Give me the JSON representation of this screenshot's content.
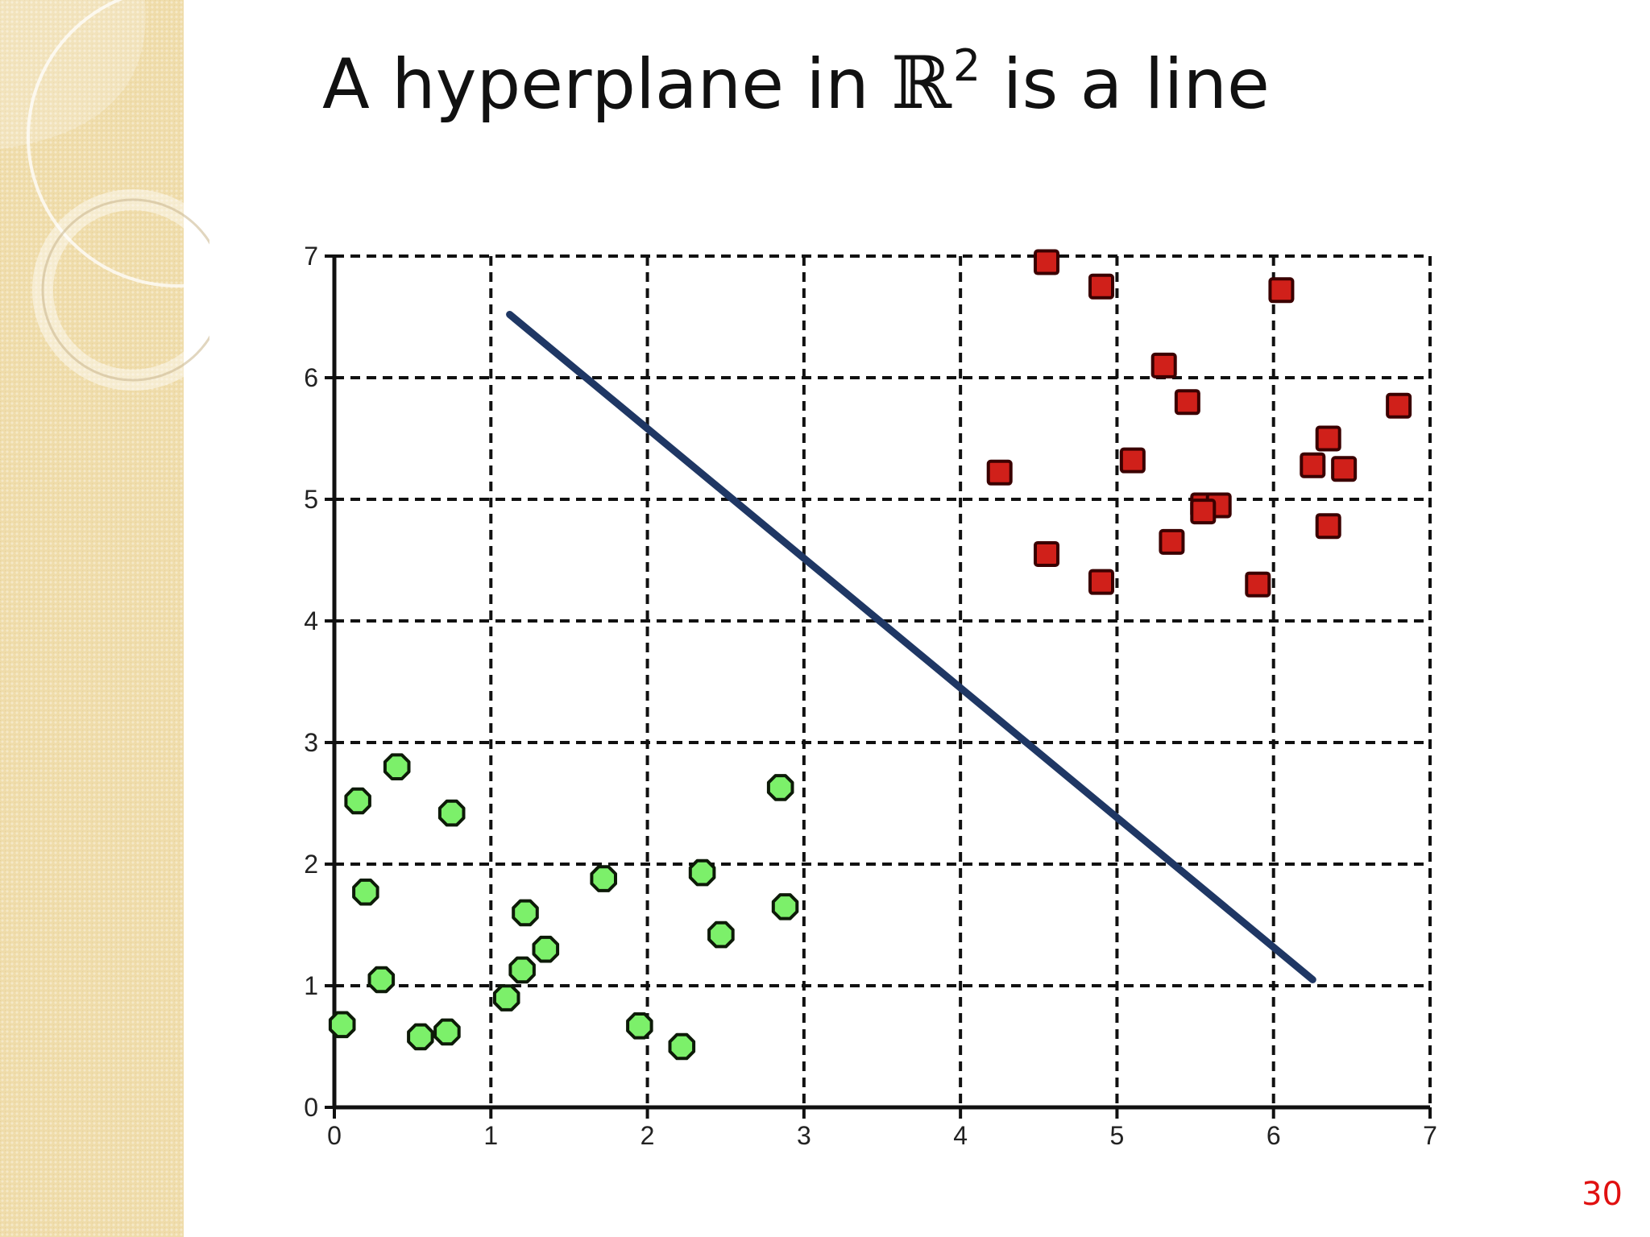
{
  "slide": {
    "title_prefix": "A hyperplane in ",
    "title_symbol": "ℝ",
    "title_exponent": "2",
    "title_suffix": " is a line",
    "page_number": "30"
  },
  "colors": {
    "panel": "#efdcaa",
    "class_positive": "#d0201a",
    "class_negative": "#7cf06a",
    "hyperplane": "#1f3764",
    "page_number": "#e01010"
  },
  "chart_data": {
    "type": "scatter",
    "title": "",
    "xlabel": "",
    "ylabel": "",
    "xlim": [
      0,
      7
    ],
    "ylim": [
      0,
      7
    ],
    "xticks": [
      "0",
      "1",
      "2",
      "3",
      "4",
      "5",
      "6",
      "7"
    ],
    "yticks": [
      "0",
      "1",
      "2",
      "3",
      "4",
      "5",
      "6",
      "7"
    ],
    "grid": true,
    "grid_style": "dashed",
    "legend": false,
    "series": [
      {
        "marker": "square",
        "color": "#d0201a",
        "points": [
          [
            4.55,
            6.95
          ],
          [
            4.9,
            6.75
          ],
          [
            6.05,
            6.72
          ],
          [
            5.3,
            6.1
          ],
          [
            5.45,
            5.8
          ],
          [
            6.8,
            5.77
          ],
          [
            4.25,
            5.22
          ],
          [
            5.1,
            5.32
          ],
          [
            6.35,
            5.5
          ],
          [
            6.25,
            5.28
          ],
          [
            6.45,
            5.25
          ],
          [
            5.55,
            4.95
          ],
          [
            5.65,
            4.95
          ],
          [
            5.55,
            4.9
          ],
          [
            5.35,
            4.65
          ],
          [
            4.55,
            4.55
          ],
          [
            6.35,
            4.78
          ],
          [
            4.9,
            4.32
          ],
          [
            5.9,
            4.3
          ]
        ]
      },
      {
        "marker": "circle",
        "color": "#7cf06a",
        "points": [
          [
            0.4,
            2.8
          ],
          [
            0.15,
            2.52
          ],
          [
            0.75,
            2.42
          ],
          [
            0.2,
            1.77
          ],
          [
            0.3,
            1.05
          ],
          [
            0.05,
            0.68
          ],
          [
            0.55,
            0.58
          ],
          [
            0.72,
            0.62
          ],
          [
            1.1,
            0.9
          ],
          [
            1.2,
            1.13
          ],
          [
            1.22,
            1.6
          ],
          [
            1.35,
            1.3
          ],
          [
            1.72,
            1.88
          ],
          [
            1.95,
            0.67
          ],
          [
            2.22,
            0.5
          ],
          [
            2.35,
            1.93
          ],
          [
            2.47,
            1.42
          ],
          [
            2.85,
            2.63
          ],
          [
            2.88,
            1.65
          ]
        ]
      }
    ],
    "lines": [
      {
        "x": [
          1.12,
          6.25
        ],
        "y": [
          6.52,
          1.05
        ],
        "color": "#1f3764"
      }
    ]
  }
}
